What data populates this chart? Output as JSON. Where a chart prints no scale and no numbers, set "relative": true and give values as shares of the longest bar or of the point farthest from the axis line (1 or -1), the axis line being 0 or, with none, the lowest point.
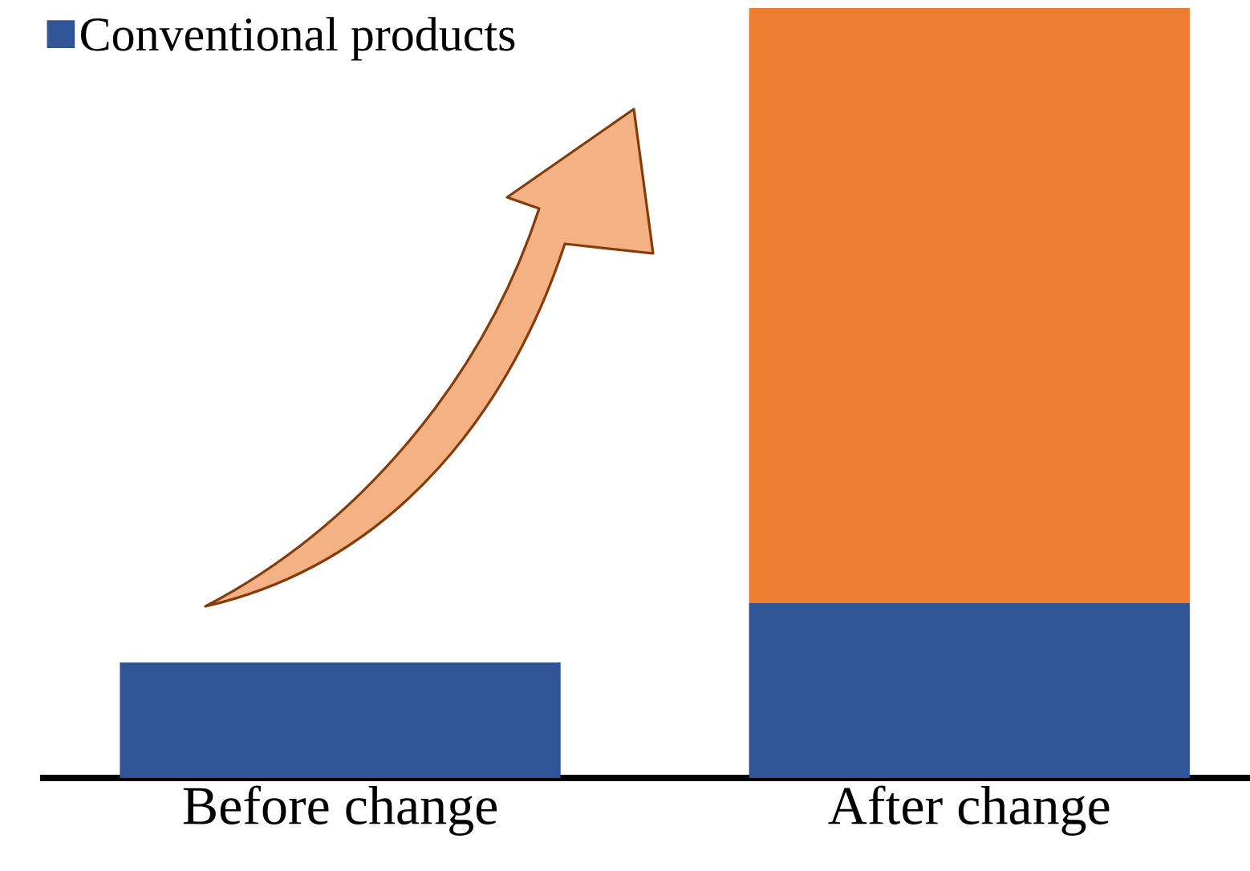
{
  "chart_data": {
    "type": "bar",
    "relative": true,
    "stacked": true,
    "categories": [
      "Before change",
      "After change"
    ],
    "series": [
      {
        "name": "Conventional products",
        "color": "#2f5597",
        "values": [
          0.15,
          0.227
        ]
      },
      {
        "color": "#ed7d31",
        "values": [
          0,
          0.773
        ]
      }
    ],
    "legend": "top left"
  }
}
